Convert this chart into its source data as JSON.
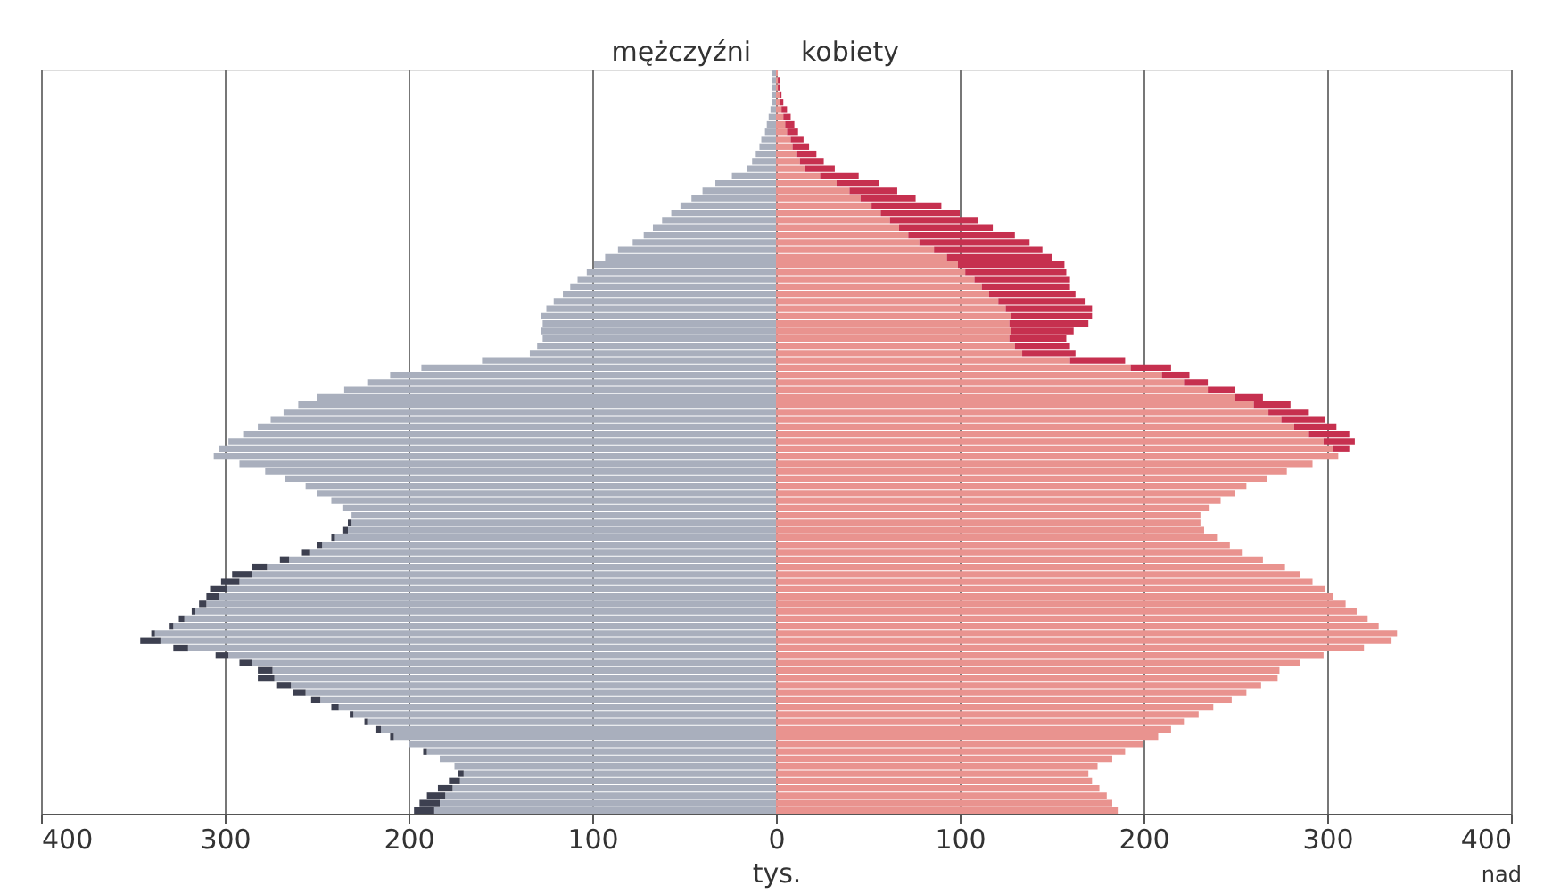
{
  "chart_data": {
    "type": "bar",
    "orientation": "horizontal",
    "stacked": true,
    "xlabel": "tys.",
    "categories": [
      null,
      null,
      null,
      null,
      null,
      null,
      null,
      null,
      null,
      null,
      null,
      null,
      null,
      null,
      null,
      null,
      null,
      null,
      null,
      null,
      null,
      null,
      null,
      null,
      null,
      null,
      null,
      null,
      null,
      null,
      null,
      null,
      null,
      null,
      null,
      null,
      null,
      null,
      null,
      null,
      null,
      null,
      null,
      null,
      null,
      null,
      null,
      null,
      null,
      null,
      null,
      null,
      null,
      null,
      null,
      null,
      null,
      null,
      null,
      null,
      null,
      null,
      null,
      null,
      null,
      null,
      null,
      null,
      null,
      null,
      null,
      null,
      null,
      null,
      null,
      null,
      null,
      null,
      null,
      null,
      null,
      null,
      null,
      null,
      null,
      null,
      null,
      null,
      null,
      null,
      null,
      null,
      null,
      null,
      null,
      null,
      null,
      null,
      null,
      null,
      null
    ],
    "series": [
      {
        "name": "mężczyźni",
        "color": "#a9afbd",
        "values": [
          -2,
          -2,
          -2,
          -2,
          -2,
          -3,
          -4,
          -5,
          -6,
          -8,
          -9,
          -11,
          -13,
          -16,
          -24,
          -33,
          -40,
          -46,
          -52,
          -57,
          -62,
          -67,
          -72,
          -78,
          -86,
          -93,
          -99,
          -103,
          -108,
          -112,
          -116,
          -121,
          -125,
          -128,
          -127,
          -128,
          -127,
          -130,
          -134,
          -160,
          -193,
          -210,
          -222,
          -235,
          -250,
          -260,
          -268,
          -275,
          -282,
          -290,
          -298,
          -303,
          -306,
          -292,
          -278,
          -267,
          -256,
          -250,
          -242,
          -236,
          -231,
          -231,
          -233,
          -240,
          -247,
          -254,
          -265,
          -277,
          -285,
          -292,
          -299,
          -303,
          -310,
          -316,
          -322,
          -328,
          -338,
          -335,
          -320,
          -298,
          -285,
          -274,
          -273,
          -264,
          -256,
          -248,
          -238,
          -230,
          -222,
          -215,
          -208,
          -200,
          -190,
          -183,
          -175,
          -170,
          -172,
          -176,
          -180,
          -183,
          -186
        ]
      },
      {
        "color": "#3d4050",
        "values": [
          null,
          null,
          null,
          null,
          null,
          null,
          null,
          null,
          null,
          null,
          null,
          null,
          null,
          null,
          null,
          null,
          null,
          null,
          null,
          null,
          null,
          null,
          null,
          null,
          null,
          null,
          null,
          null,
          null,
          null,
          null,
          null,
          null,
          null,
          null,
          null,
          null,
          null,
          null,
          null,
          null,
          null,
          null,
          null,
          null,
          null,
          null,
          null,
          null,
          null,
          null,
          null,
          null,
          null,
          null,
          null,
          null,
          null,
          null,
          null,
          null,
          -2,
          -3,
          -2,
          -3,
          -4,
          -5,
          -8,
          -11,
          -10,
          -9,
          -7,
          -4,
          -2,
          -3,
          -2,
          -2,
          -11,
          -8,
          -7,
          -7,
          -8,
          -9,
          -8,
          -7,
          -5,
          -4,
          -2,
          -2,
          -3,
          -2,
          null,
          -2,
          null,
          null,
          -3,
          -6,
          -8,
          -10,
          -11,
          -11
        ]
      },
      {
        "name": "kobiety",
        "color": "#e9938f",
        "values": [
          1,
          1,
          1,
          2,
          2,
          3,
          4,
          5,
          6,
          8,
          9,
          11,
          13,
          16,
          24,
          33,
          40,
          46,
          52,
          57,
          62,
          67,
          72,
          78,
          86,
          93,
          99,
          103,
          108,
          112,
          116,
          121,
          125,
          128,
          127,
          128,
          127,
          130,
          134,
          160,
          193,
          210,
          222,
          235,
          250,
          260,
          268,
          275,
          282,
          290,
          298,
          303,
          306,
          292,
          278,
          267,
          256,
          250,
          242,
          236,
          231,
          231,
          233,
          240,
          247,
          254,
          265,
          277,
          285,
          292,
          299,
          303,
          310,
          316,
          322,
          328,
          338,
          335,
          320,
          298,
          285,
          274,
          273,
          264,
          256,
          248,
          238,
          230,
          222,
          215,
          208,
          200,
          190,
          183,
          175,
          170,
          172,
          176,
          180,
          183,
          186
        ]
      },
      {
        "color": "#c6304f",
        "values": [
          null,
          1,
          1,
          1,
          2,
          3,
          4,
          5,
          6,
          7,
          9,
          11,
          13,
          16,
          21,
          23,
          26,
          30,
          38,
          43,
          48,
          51,
          58,
          60,
          59,
          57,
          58,
          55,
          52,
          48,
          47,
          47,
          47,
          44,
          43,
          34,
          31,
          30,
          29,
          30,
          22,
          15,
          13,
          15,
          15,
          20,
          22,
          24,
          23,
          22,
          17,
          9,
          null,
          null,
          null,
          null,
          null,
          null,
          null,
          null,
          null,
          null,
          null,
          null,
          null,
          null,
          null,
          null,
          null,
          null,
          null,
          null,
          null,
          null,
          null,
          null,
          null,
          null,
          null,
          null,
          null,
          null,
          null,
          null,
          null,
          null,
          null,
          null,
          null,
          null,
          null,
          null,
          null,
          null,
          null,
          null,
          null,
          null,
          null,
          null,
          null
        ]
      }
    ],
    "xlim": [
      -400,
      400
    ],
    "xticks": [
      {
        "value": -400,
        "label": "400"
      },
      {
        "value": -300,
        "label": "300"
      },
      {
        "value": -200,
        "label": "200"
      },
      {
        "value": -100,
        "label": "100"
      },
      0,
      100,
      200,
      300,
      400
    ],
    "grid": "x",
    "legend": false,
    "tick_labels": "x",
    "annotations": [
      "nad"
    ]
  }
}
